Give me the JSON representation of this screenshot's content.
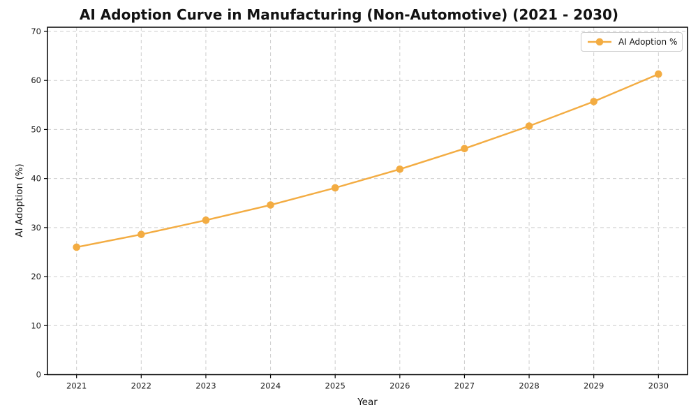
{
  "chart_data": {
    "type": "line",
    "title": "AI Adoption Curve in Manufacturing (Non-Automotive) (2021 - 2030)",
    "xlabel": "Year",
    "ylabel": "AI Adoption (%)",
    "x": [
      2021,
      2022,
      2023,
      2024,
      2025,
      2026,
      2027,
      2028,
      2029,
      2030
    ],
    "series": [
      {
        "name": "AI Adoption %",
        "color": "#F3AC42",
        "values": [
          26.0,
          28.6,
          31.5,
          34.6,
          38.1,
          41.9,
          46.1,
          50.7,
          55.7,
          61.3
        ]
      }
    ],
    "ylim": [
      0,
      70.9
    ],
    "yticks": [
      0,
      10,
      20,
      30,
      40,
      50,
      60,
      70
    ],
    "grid": true,
    "legend": {
      "position": "upper-right",
      "entries": [
        "AI Adoption %"
      ]
    }
  },
  "style_colors": {
    "grid": "#cdcdcd",
    "spine": "#000000",
    "tick_text": "#1a1a1a",
    "legend_border": "#cccccc",
    "background": "#ffffff"
  }
}
